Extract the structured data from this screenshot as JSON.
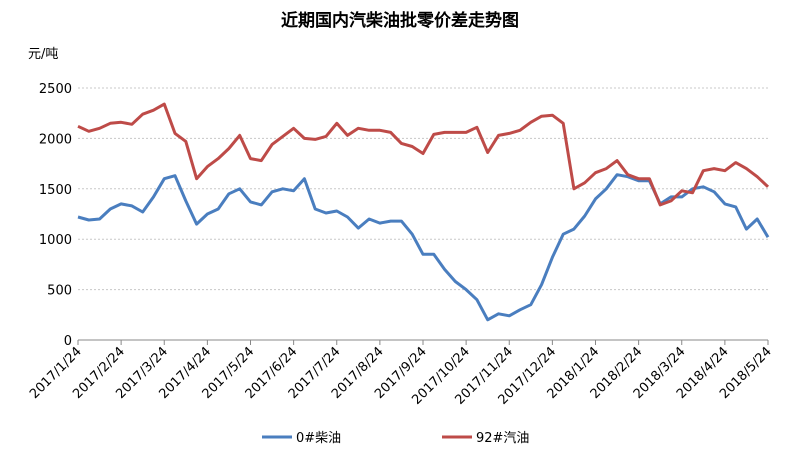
{
  "chart_data": {
    "type": "line",
    "title": "近期国内汽柴油批零价差走势图",
    "y_label": "元/吨",
    "categories": [
      "2017/1/24",
      null,
      null,
      null,
      "2017/2/24",
      null,
      null,
      null,
      "2017/3/24",
      null,
      null,
      null,
      "2017/4/24",
      null,
      null,
      null,
      "2017/5/24",
      null,
      null,
      null,
      "2017/6/24",
      null,
      null,
      null,
      "2017/7/24",
      null,
      null,
      null,
      "2017/8/24",
      null,
      null,
      null,
      "2017/9/24",
      null,
      null,
      null,
      "2017/10/24",
      null,
      null,
      null,
      "2017/11/24",
      null,
      null,
      null,
      "2017/12/24",
      null,
      null,
      null,
      "2018/1/24",
      null,
      null,
      null,
      "2018/2/24",
      null,
      null,
      null,
      "2018/3/24",
      null,
      null,
      null,
      "2018/4/24",
      null,
      null,
      null,
      "2018/5/24"
    ],
    "series": [
      {
        "name": "0#柴油",
        "color": "#4a7ebf",
        "values": [
          1220,
          1190,
          1200,
          1300,
          1350,
          1330,
          1270,
          1420,
          1600,
          1630,
          1380,
          1150,
          1250,
          1300,
          1450,
          1500,
          1370,
          1340,
          1470,
          1500,
          1480,
          1600,
          1300,
          1260,
          1280,
          1220,
          1110,
          1200,
          1160,
          1180,
          1180,
          1050,
          850,
          850,
          700,
          580,
          500,
          400,
          200,
          260,
          240,
          300,
          350,
          550,
          820,
          1050,
          1100,
          1230,
          1400,
          1500,
          1640,
          1620,
          1580,
          1580,
          1350,
          1420,
          1420,
          1500,
          1520,
          1470,
          1350,
          1320,
          1100,
          1200,
          1020
        ]
      },
      {
        "name": "92#汽油",
        "color": "#be4b48",
        "values": [
          2120,
          2070,
          2100,
          2150,
          2160,
          2140,
          2240,
          2280,
          2340,
          2050,
          1970,
          1600,
          1720,
          1800,
          1900,
          2030,
          1800,
          1780,
          1940,
          2020,
          2100,
          2000,
          1990,
          2020,
          2150,
          2030,
          2100,
          2080,
          2080,
          2060,
          1950,
          1920,
          1850,
          2040,
          2060,
          2060,
          2060,
          2110,
          1860,
          2030,
          2050,
          2080,
          2160,
          2220,
          2230,
          2150,
          1500,
          1560,
          1660,
          1700,
          1780,
          1640,
          1600,
          1600,
          1340,
          1380,
          1480,
          1460,
          1680,
          1700,
          1680,
          1760,
          1700,
          1620,
          1520
        ]
      }
    ],
    "ylim": [
      0,
      2500
    ],
    "yticks": [
      0,
      500,
      1000,
      1500,
      2000,
      2500
    ],
    "grid": true
  }
}
